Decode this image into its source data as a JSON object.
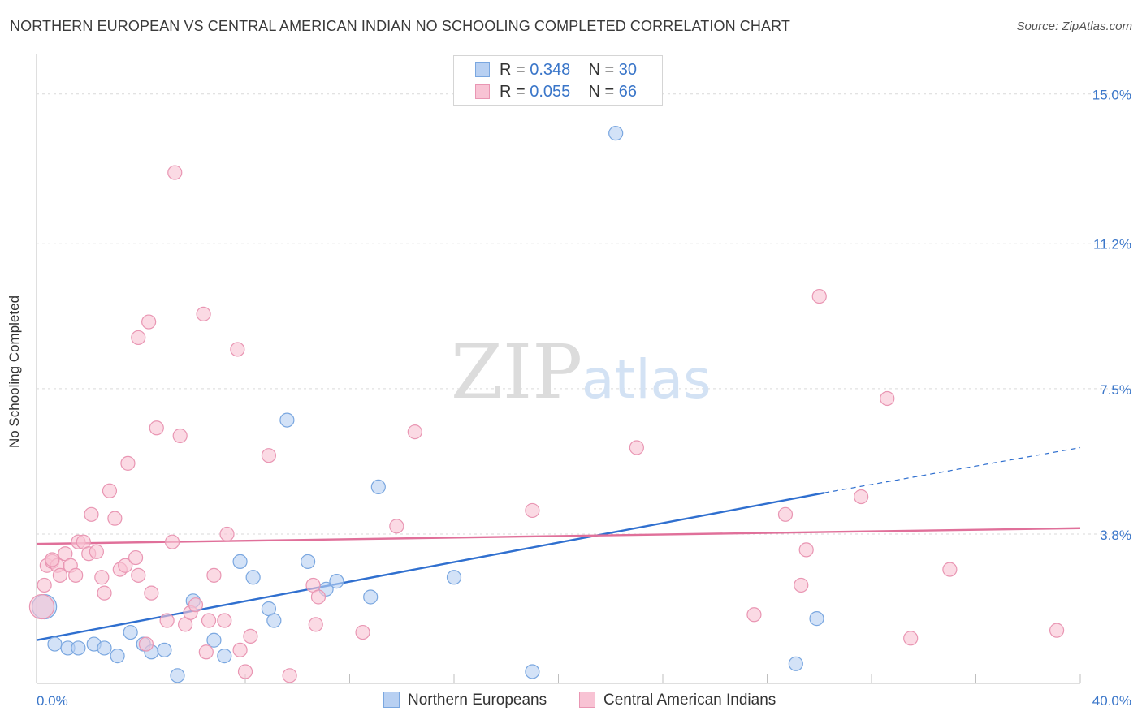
{
  "header": {
    "title": "NORTHERN EUROPEAN VS CENTRAL AMERICAN INDIAN NO SCHOOLING COMPLETED CORRELATION CHART",
    "source": "Source: ZipAtlas.com"
  },
  "watermark": {
    "zip": "ZIP",
    "atlas": "atlas"
  },
  "legend_stats": {
    "r_label": "R =",
    "n_label": "N =",
    "series": [
      {
        "r": "0.348",
        "n": "30"
      },
      {
        "r": "0.055",
        "n": "66"
      }
    ]
  },
  "colors": {
    "blue_fill": "#b8d0f2",
    "blue_stroke": "#7aa7e0",
    "blue_line": "#2f6fcf",
    "pink_fill": "#f8c3d4",
    "pink_stroke": "#e996b3",
    "pink_line": "#e0709a",
    "tick_label": "#3a76c9"
  },
  "chart_data": {
    "type": "scatter",
    "title": "NORTHERN EUROPEAN VS CENTRAL AMERICAN INDIAN NO SCHOOLING COMPLETED CORRELATION CHART",
    "xlabel": "",
    "ylabel": "No Schooling Completed",
    "xlim": [
      0,
      40
    ],
    "ylim": [
      0,
      15.8
    ],
    "x_tick_labels": [
      {
        "value": 0,
        "label": "0.0%"
      },
      {
        "value": 40,
        "label": "40.0%"
      }
    ],
    "y_tick_labels": [
      {
        "value": 3.8,
        "label": "3.8%"
      },
      {
        "value": 7.5,
        "label": "7.5%"
      },
      {
        "value": 11.2,
        "label": "11.2%"
      },
      {
        "value": 15.0,
        "label": "15.0%"
      }
    ],
    "x_minor_ticks": [
      0,
      4,
      8,
      12,
      16,
      20,
      24,
      28,
      32,
      36,
      40
    ],
    "grid": true,
    "legend_position": "bottom-center",
    "series": [
      {
        "name": "Northern Europeans",
        "color": "#b8d0f2",
        "trend": {
          "x": [
            0,
            30.2
          ],
          "y": [
            1.1,
            4.85
          ],
          "dashed_to": [
            40,
            6.0
          ]
        },
        "points": [
          {
            "x": 0.3,
            "y": 1.95,
            "big": true
          },
          {
            "x": 0.7,
            "y": 1.0
          },
          {
            "x": 1.2,
            "y": 0.9
          },
          {
            "x": 1.6,
            "y": 0.9
          },
          {
            "x": 2.2,
            "y": 1.0
          },
          {
            "x": 2.6,
            "y": 0.9
          },
          {
            "x": 3.1,
            "y": 0.7
          },
          {
            "x": 3.6,
            "y": 1.3
          },
          {
            "x": 4.1,
            "y": 1.0
          },
          {
            "x": 4.4,
            "y": 0.8
          },
          {
            "x": 4.9,
            "y": 0.85
          },
          {
            "x": 5.4,
            "y": 0.2
          },
          {
            "x": 6.0,
            "y": 2.1
          },
          {
            "x": 6.8,
            "y": 1.1
          },
          {
            "x": 7.2,
            "y": 0.7
          },
          {
            "x": 7.8,
            "y": 3.1
          },
          {
            "x": 8.3,
            "y": 2.7
          },
          {
            "x": 8.9,
            "y": 1.9
          },
          {
            "x": 9.1,
            "y": 1.6
          },
          {
            "x": 9.6,
            "y": 6.7
          },
          {
            "x": 10.4,
            "y": 3.1
          },
          {
            "x": 11.1,
            "y": 2.4
          },
          {
            "x": 11.5,
            "y": 2.6
          },
          {
            "x": 12.8,
            "y": 2.2
          },
          {
            "x": 13.1,
            "y": 5.0
          },
          {
            "x": 16.0,
            "y": 2.7
          },
          {
            "x": 19.0,
            "y": 0.3
          },
          {
            "x": 22.2,
            "y": 14.0
          },
          {
            "x": 29.1,
            "y": 0.5
          },
          {
            "x": 29.9,
            "y": 1.65
          }
        ]
      },
      {
        "name": "Central American Indians",
        "color": "#f8c3d4",
        "trend": {
          "x": [
            0,
            40
          ],
          "y": [
            3.55,
            3.95
          ]
        },
        "points": [
          {
            "x": 0.2,
            "y": 1.95,
            "big": true
          },
          {
            "x": 0.3,
            "y": 2.5
          },
          {
            "x": 0.4,
            "y": 3.0
          },
          {
            "x": 0.6,
            "y": 3.1
          },
          {
            "x": 0.8,
            "y": 3.0
          },
          {
            "x": 0.9,
            "y": 2.75
          },
          {
            "x": 1.1,
            "y": 3.3
          },
          {
            "x": 1.3,
            "y": 3.0
          },
          {
            "x": 1.5,
            "y": 2.75
          },
          {
            "x": 1.6,
            "y": 3.6
          },
          {
            "x": 1.8,
            "y": 3.6
          },
          {
            "x": 2.0,
            "y": 3.3
          },
          {
            "x": 2.1,
            "y": 4.3
          },
          {
            "x": 2.3,
            "y": 3.35
          },
          {
            "x": 2.5,
            "y": 2.7
          },
          {
            "x": 2.6,
            "y": 2.3
          },
          {
            "x": 2.8,
            "y": 4.9
          },
          {
            "x": 3.0,
            "y": 4.2
          },
          {
            "x": 3.2,
            "y": 2.9
          },
          {
            "x": 3.4,
            "y": 3.0
          },
          {
            "x": 3.5,
            "y": 5.6
          },
          {
            "x": 3.8,
            "y": 3.2
          },
          {
            "x": 3.9,
            "y": 2.75
          },
          {
            "x": 3.9,
            "y": 8.8
          },
          {
            "x": 4.2,
            "y": 1.0
          },
          {
            "x": 4.3,
            "y": 9.2
          },
          {
            "x": 4.4,
            "y": 2.3
          },
          {
            "x": 4.6,
            "y": 6.5
          },
          {
            "x": 5.0,
            "y": 1.6
          },
          {
            "x": 5.2,
            "y": 3.6
          },
          {
            "x": 5.3,
            "y": 13.0
          },
          {
            "x": 5.5,
            "y": 6.3
          },
          {
            "x": 5.7,
            "y": 1.5
          },
          {
            "x": 5.9,
            "y": 1.8
          },
          {
            "x": 6.1,
            "y": 2.0
          },
          {
            "x": 6.4,
            "y": 9.4
          },
          {
            "x": 6.5,
            "y": 0.8
          },
          {
            "x": 6.6,
            "y": 1.6
          },
          {
            "x": 6.8,
            "y": 2.75
          },
          {
            "x": 7.2,
            "y": 1.6
          },
          {
            "x": 7.3,
            "y": 3.8
          },
          {
            "x": 7.7,
            "y": 8.5
          },
          {
            "x": 7.8,
            "y": 0.85
          },
          {
            "x": 8.0,
            "y": 0.3
          },
          {
            "x": 8.2,
            "y": 1.2
          },
          {
            "x": 8.9,
            "y": 5.8
          },
          {
            "x": 9.7,
            "y": 0.2
          },
          {
            "x": 10.6,
            "y": 2.5
          },
          {
            "x": 10.7,
            "y": 1.5
          },
          {
            "x": 10.8,
            "y": 2.2
          },
          {
            "x": 12.5,
            "y": 1.3
          },
          {
            "x": 13.8,
            "y": 4.0
          },
          {
            "x": 14.5,
            "y": 6.4
          },
          {
            "x": 19.0,
            "y": 4.4
          },
          {
            "x": 23.0,
            "y": 6.0
          },
          {
            "x": 27.5,
            "y": 1.75
          },
          {
            "x": 28.7,
            "y": 4.3
          },
          {
            "x": 29.3,
            "y": 2.5
          },
          {
            "x": 29.5,
            "y": 3.4
          },
          {
            "x": 30.0,
            "y": 9.85
          },
          {
            "x": 31.6,
            "y": 4.75
          },
          {
            "x": 32.6,
            "y": 7.25
          },
          {
            "x": 33.5,
            "y": 1.15
          },
          {
            "x": 35.0,
            "y": 2.9
          },
          {
            "x": 39.1,
            "y": 1.35
          },
          {
            "x": 0.6,
            "y": 3.15
          }
        ]
      }
    ]
  },
  "bottom_legend": [
    {
      "label": "Northern Europeans"
    },
    {
      "label": "Central American Indians"
    }
  ]
}
